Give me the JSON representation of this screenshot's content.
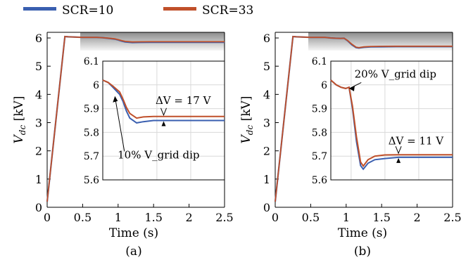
{
  "legend": [
    {
      "name": "SCR=10",
      "color": "#3a5fb0"
    },
    {
      "name": "SCR=33",
      "color": "#c0502a"
    }
  ],
  "chart_data": [
    {
      "type": "line",
      "panel_label": "(a)",
      "xlabel": "Time (s)",
      "ylabel": "V_dc [kV]",
      "xlim": [
        0,
        2.5
      ],
      "ylim": [
        0,
        6.2
      ],
      "xticks": [
        "0",
        "0.5",
        "1",
        "1.5",
        "2",
        "2.5"
      ],
      "yticks": [
        "0",
        "1",
        "2",
        "3",
        "4",
        "5",
        "6"
      ],
      "series": [
        {
          "name": "SCR=10",
          "color": "#3a5fb0",
          "x": [
            0,
            0.25,
            0.3,
            0.5,
            0.7,
            0.78,
            0.85,
            0.95,
            1.0,
            1.05,
            1.1,
            1.2,
            1.3,
            1.45,
            1.7,
            2.0,
            2.5
          ],
          "y": [
            0.2,
            6.05,
            6.04,
            6.02,
            6.02,
            6.01,
            5.99,
            5.96,
            5.93,
            5.89,
            5.86,
            5.84,
            5.845,
            5.85,
            5.85,
            5.85,
            5.85
          ]
        },
        {
          "name": "SCR=33",
          "color": "#c0502a",
          "x": [
            0,
            0.25,
            0.3,
            0.5,
            0.7,
            0.78,
            0.85,
            0.95,
            1.0,
            1.05,
            1.1,
            1.2,
            1.3,
            1.45,
            1.7,
            2.0,
            2.5
          ],
          "y": [
            0.2,
            6.05,
            6.04,
            6.02,
            6.02,
            6.01,
            5.995,
            5.97,
            5.94,
            5.905,
            5.88,
            5.86,
            5.865,
            5.867,
            5.867,
            5.867,
            5.867
          ]
        }
      ],
      "inset": {
        "xlim": [
          0.7,
          2.5
        ],
        "ylim": [
          5.6,
          6.1
        ],
        "yticks": [
          "5.6",
          "5.7",
          "5.8",
          "5.9",
          "6",
          "6.1"
        ]
      },
      "annotations": [
        "ΔV = 17 V",
        "10% V_grid dip"
      ]
    },
    {
      "type": "line",
      "panel_label": "(b)",
      "xlabel": "Time (s)",
      "ylabel": "V_dc [kV]",
      "xlim": [
        0,
        2.5
      ],
      "ylim": [
        0,
        6.2
      ],
      "xticks": [
        "0",
        "0.5",
        "1",
        "1.5",
        "2",
        "2.5"
      ],
      "yticks": [
        "0",
        "1",
        "2",
        "3",
        "4",
        "5",
        "6"
      ],
      "series": [
        {
          "name": "SCR=10",
          "color": "#3a5fb0",
          "x": [
            0,
            0.25,
            0.3,
            0.5,
            0.7,
            0.78,
            0.85,
            0.92,
            0.97,
            1.02,
            1.08,
            1.14,
            1.18,
            1.25,
            1.35,
            1.5,
            1.7,
            2.0,
            2.5
          ],
          "y": [
            0.2,
            6.05,
            6.04,
            6.02,
            6.02,
            6.0,
            5.99,
            5.985,
            5.99,
            5.9,
            5.76,
            5.66,
            5.645,
            5.67,
            5.685,
            5.69,
            5.695,
            5.695,
            5.695
          ]
        },
        {
          "name": "SCR=33",
          "color": "#c0502a",
          "x": [
            0,
            0.25,
            0.3,
            0.5,
            0.7,
            0.78,
            0.85,
            0.92,
            0.97,
            1.02,
            1.08,
            1.14,
            1.18,
            1.25,
            1.35,
            1.5,
            1.7,
            2.0,
            2.5
          ],
          "y": [
            0.2,
            6.05,
            6.04,
            6.02,
            6.02,
            6.0,
            5.99,
            5.985,
            5.99,
            5.91,
            5.78,
            5.675,
            5.658,
            5.685,
            5.7,
            5.705,
            5.706,
            5.706,
            5.706
          ]
        }
      ],
      "inset": {
        "xlim": [
          0.7,
          2.5
        ],
        "ylim": [
          5.6,
          6.1
        ],
        "yticks": [
          "5.6",
          "5.7",
          "5.8",
          "5.9",
          "6",
          "6.1"
        ]
      },
      "annotations": [
        "ΔV = 11 V",
        "20% V_grid dip"
      ]
    }
  ]
}
